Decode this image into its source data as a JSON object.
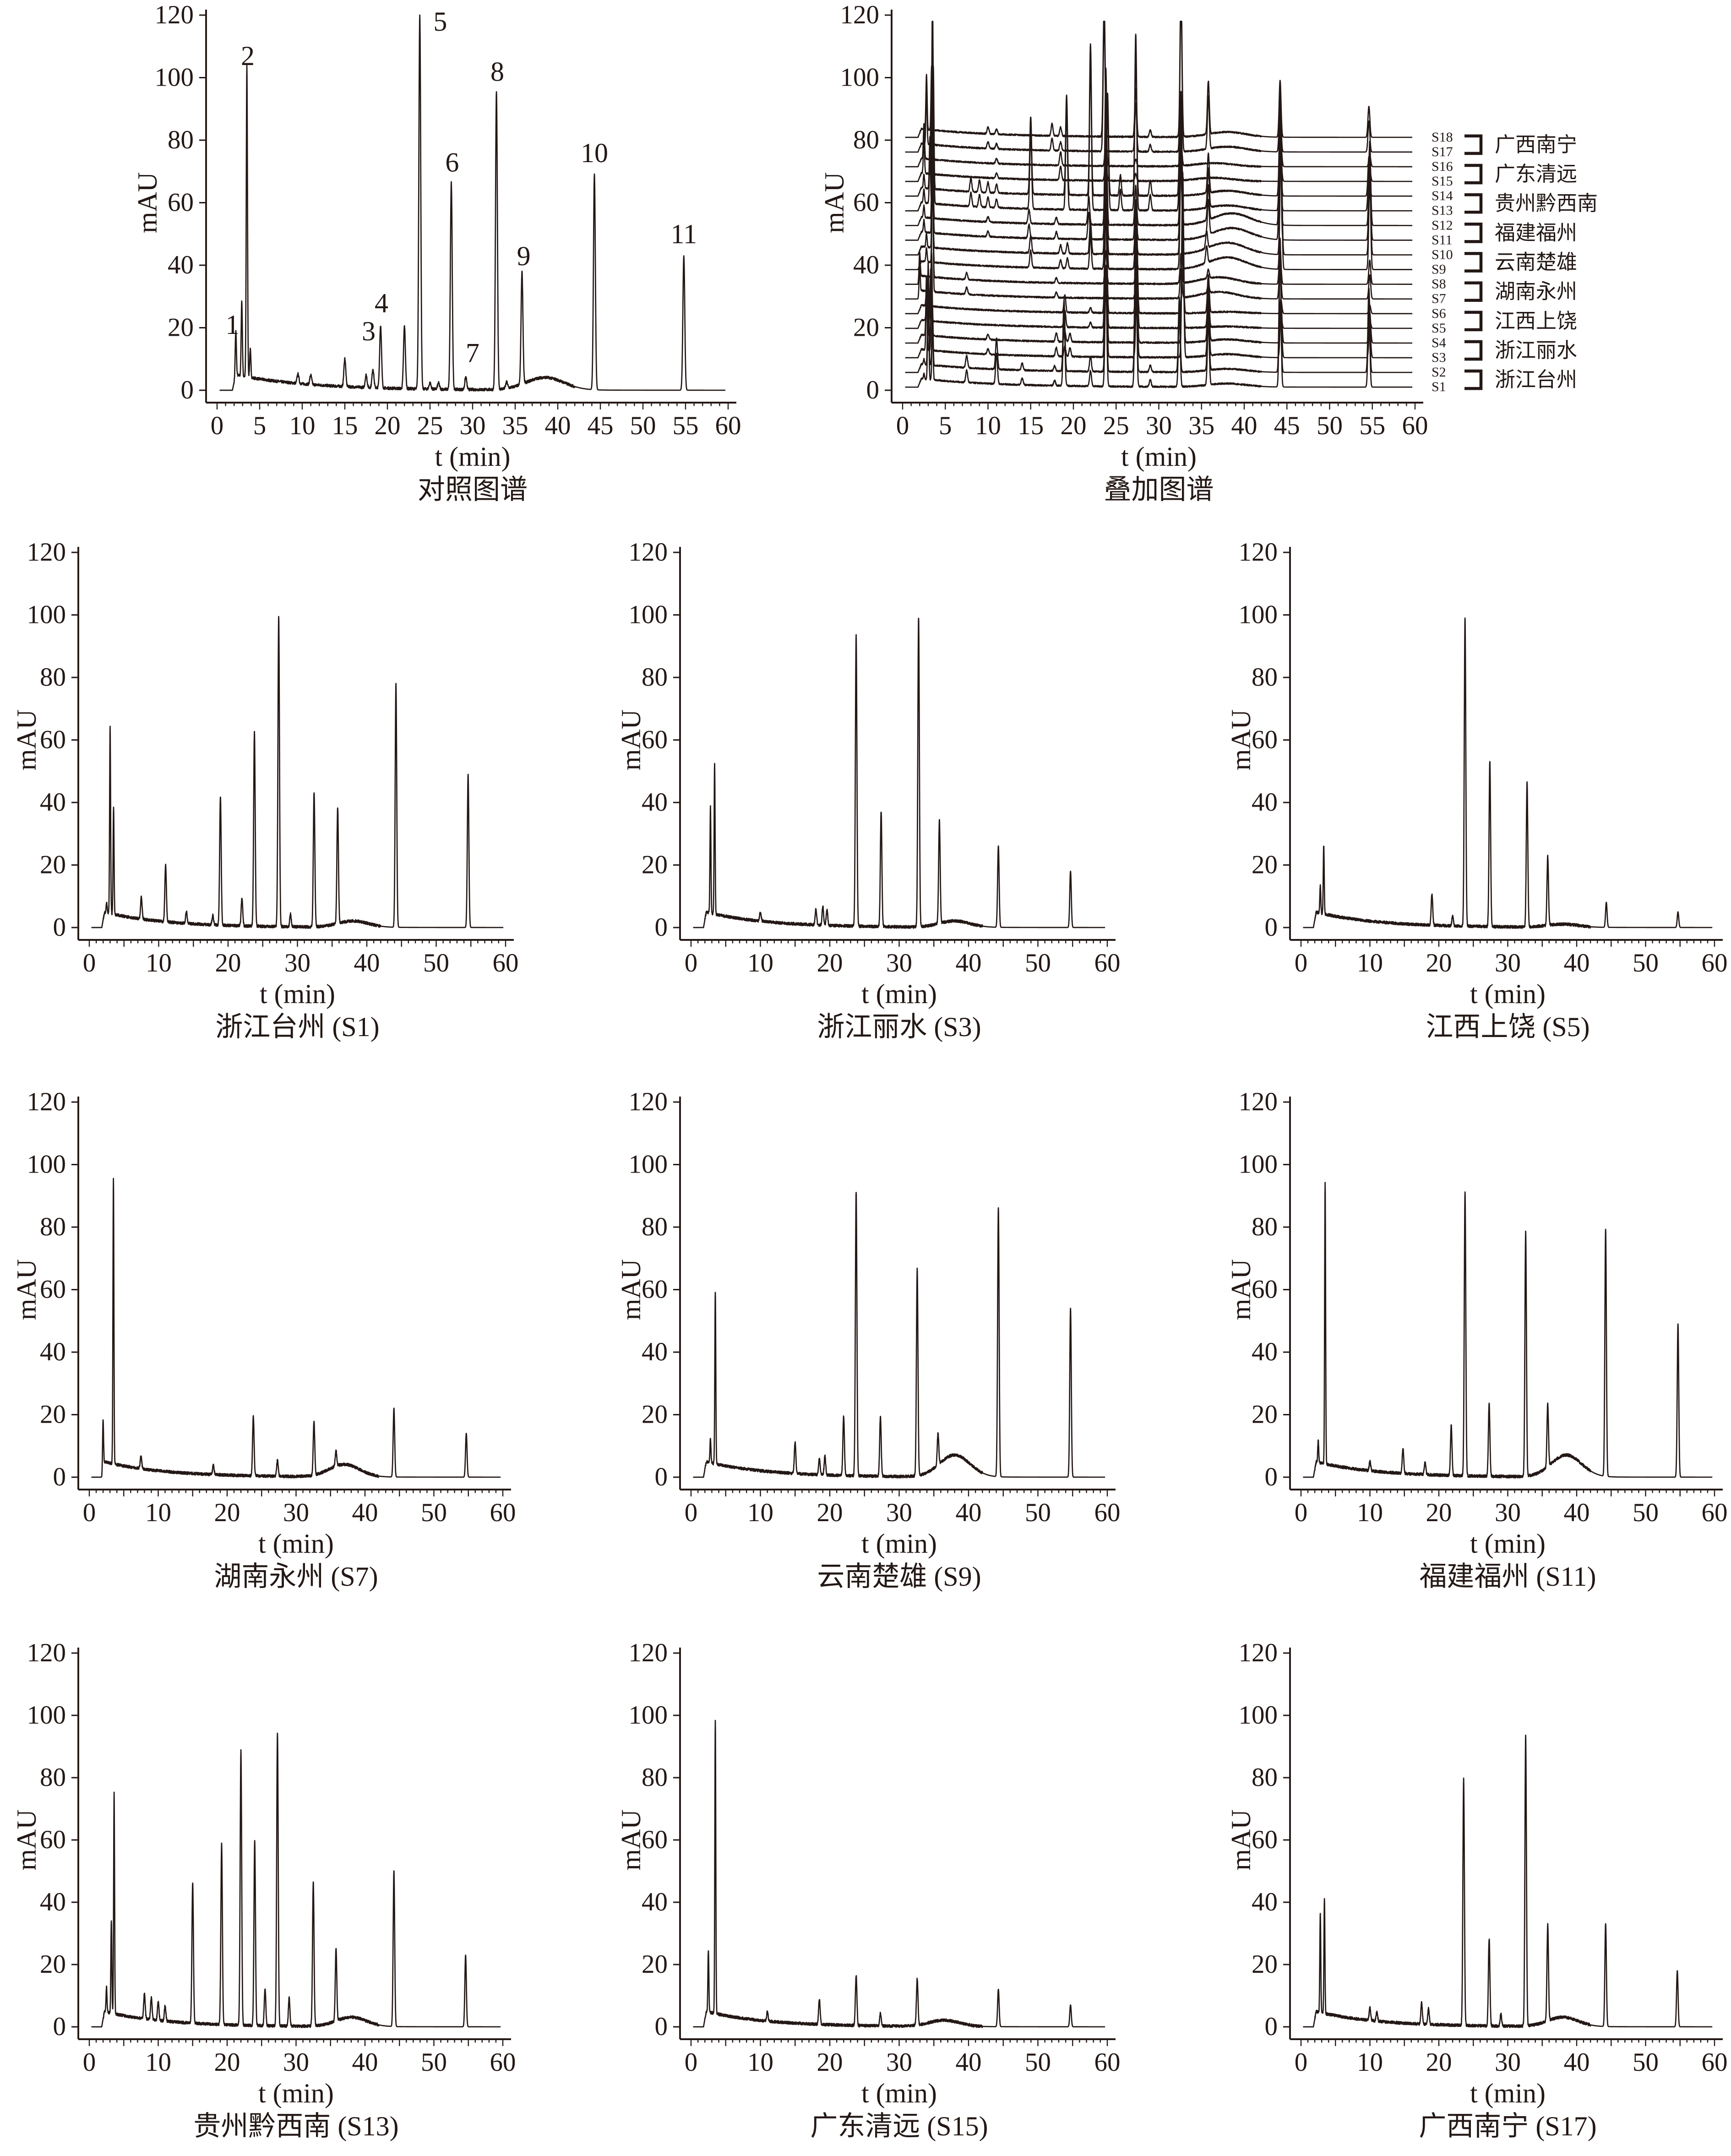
{
  "chart_data": [
    {
      "id": "reference",
      "type": "line",
      "title": "对照图谱",
      "xlabel": "t (min)",
      "ylabel": "mAU",
      "xlim": [
        0,
        60
      ],
      "ylim": [
        0,
        120
      ],
      "xticks": [
        0,
        5,
        10,
        15,
        20,
        25,
        30,
        35,
        40,
        45,
        50,
        55,
        60
      ],
      "yticks": [
        0,
        20,
        40,
        60,
        80,
        100,
        120
      ],
      "peaks": [
        [
          2.2,
          14
        ],
        [
          2.9,
          24
        ],
        [
          3.5,
          100
        ],
        [
          3.9,
          9
        ],
        [
          9.5,
          3
        ],
        [
          11,
          3
        ],
        [
          15,
          9
        ],
        [
          17.5,
          4
        ],
        [
          18.3,
          6
        ],
        [
          19.2,
          20
        ],
        [
          22,
          20
        ],
        [
          23.8,
          120
        ],
        [
          25,
          2
        ],
        [
          26,
          2
        ],
        [
          27.5,
          66
        ],
        [
          29.2,
          4
        ],
        [
          32.8,
          95
        ],
        [
          34,
          2
        ],
        [
          35.8,
          36
        ],
        [
          44.3,
          69
        ],
        [
          54.8,
          43
        ]
      ],
      "hump": [
        38.5,
        4
      ],
      "peak_labels": [
        {
          "label": "1",
          "t": 1.8,
          "y": 18
        },
        {
          "label": "2",
          "t": 3.6,
          "y": 104
        },
        {
          "label": "3",
          "t": 17.8,
          "y": 16
        },
        {
          "label": "4",
          "t": 19.3,
          "y": 25
        },
        {
          "label": "5",
          "t": 26.2,
          "y": 115
        },
        {
          "label": "6",
          "t": 27.6,
          "y": 70
        },
        {
          "label": "7",
          "t": 30.0,
          "y": 9
        },
        {
          "label": "8",
          "t": 32.9,
          "y": 99
        },
        {
          "label": "9",
          "t": 36.0,
          "y": 40
        },
        {
          "label": "10",
          "t": 44.3,
          "y": 73
        },
        {
          "label": "11",
          "t": 54.8,
          "y": 47
        }
      ]
    },
    {
      "id": "overlay",
      "type": "line",
      "title": "叠加图谱",
      "xlabel": "t (min)",
      "ylabel": "mAU",
      "xlim": [
        0,
        60
      ],
      "ylim": [
        0,
        120
      ],
      "xticks": [
        0,
        5,
        10,
        15,
        20,
        25,
        30,
        35,
        40,
        45,
        50,
        55,
        60
      ],
      "yticks": [
        0,
        20,
        40,
        60,
        80,
        100,
        120
      ],
      "traces": [
        "S1",
        "S2",
        "S3",
        "S4",
        "S5",
        "S6",
        "S7",
        "S8",
        "S9",
        "S10",
        "S11",
        "S12",
        "S13",
        "S14",
        "S15",
        "S16",
        "S17",
        "S18"
      ],
      "groups": [
        {
          "samples": [
            "S17",
            "S18"
          ],
          "region": "广西南宁",
          "profile": "S17"
        },
        {
          "samples": [
            "S15",
            "S16"
          ],
          "region": "广东清远",
          "profile": "S15"
        },
        {
          "samples": [
            "S13",
            "S14"
          ],
          "region": "贵州黔西南",
          "profile": "S13"
        },
        {
          "samples": [
            "S11",
            "S12"
          ],
          "region": "福建福州",
          "profile": "S11"
        },
        {
          "samples": [
            "S9",
            "S10"
          ],
          "region": "云南楚雄",
          "profile": "S9"
        },
        {
          "samples": [
            "S7",
            "S8"
          ],
          "region": "湖南永州",
          "profile": "S7"
        },
        {
          "samples": [
            "S5",
            "S6"
          ],
          "region": "江西上饶",
          "profile": "S5"
        },
        {
          "samples": [
            "S3",
            "S4"
          ],
          "region": "浙江丽水",
          "profile": "S3"
        },
        {
          "samples": [
            "S1",
            "S2"
          ],
          "region": "浙江台州",
          "profile": "S1"
        }
      ],
      "offset_step_mAU": 4.7
    },
    {
      "id": "S1",
      "type": "line",
      "title": "浙江台州 (S1)",
      "xlabel": "t (min)",
      "ylabel": "mAU",
      "xlim": [
        0,
        60
      ],
      "ylim": [
        0,
        120
      ],
      "xticks": [
        0,
        10,
        20,
        30,
        40,
        50,
        60
      ],
      "yticks": [
        0,
        20,
        40,
        60,
        80,
        100,
        120
      ],
      "peaks": [
        [
          2.5,
          3
        ],
        [
          3.0,
          60
        ],
        [
          3.5,
          34
        ],
        [
          7.5,
          7
        ],
        [
          11,
          18
        ],
        [
          14,
          4
        ],
        [
          17.8,
          3
        ],
        [
          18.9,
          41
        ],
        [
          22,
          9
        ],
        [
          23.8,
          62
        ],
        [
          27.3,
          99
        ],
        [
          29,
          4
        ],
        [
          32.4,
          43
        ],
        [
          35.8,
          37
        ],
        [
          44.2,
          78
        ],
        [
          54.6,
          49
        ]
      ],
      "hump": [
        38,
        2
      ]
    },
    {
      "id": "S3",
      "type": "line",
      "title": "浙江丽水 (S3)",
      "xlabel": "t (min)",
      "ylabel": "mAU",
      "xlim": [
        0,
        60
      ],
      "ylim": [
        0,
        120
      ],
      "xticks": [
        0,
        10,
        20,
        30,
        40,
        50,
        60
      ],
      "yticks": [
        0,
        20,
        40,
        60,
        80,
        100,
        120
      ],
      "peaks": [
        [
          2.8,
          34
        ],
        [
          3.4,
          48
        ],
        [
          10,
          3
        ],
        [
          18,
          5
        ],
        [
          19,
          6
        ],
        [
          19.6,
          5
        ],
        [
          23.8,
          93
        ],
        [
          27.4,
          37
        ],
        [
          32.8,
          99
        ],
        [
          35.8,
          33
        ],
        [
          44.3,
          26
        ],
        [
          54.7,
          18
        ]
      ],
      "hump": [
        38,
        2
      ]
    },
    {
      "id": "S5",
      "type": "line",
      "title": "江西上饶 (S5)",
      "xlabel": "t (min)",
      "ylabel": "mAU",
      "xlim": [
        0,
        60
      ],
      "ylim": [
        0,
        120
      ],
      "xticks": [
        0,
        10,
        20,
        30,
        40,
        50,
        60
      ],
      "yticks": [
        0,
        20,
        40,
        60,
        80,
        100,
        120
      ],
      "peaks": [
        [
          2.8,
          9
        ],
        [
          3.3,
          22
        ],
        [
          19,
          10
        ],
        [
          22,
          3
        ],
        [
          23.8,
          99
        ],
        [
          27.4,
          53
        ],
        [
          32.8,
          46
        ],
        [
          35.8,
          22
        ],
        [
          44.3,
          8
        ],
        [
          54.7,
          5
        ]
      ],
      "hump": [
        38,
        1
      ]
    },
    {
      "id": "S7",
      "type": "line",
      "title": "湖南永州 (S7)",
      "xlabel": "t (min)",
      "ylabel": "mAU",
      "xlim": [
        0,
        60
      ],
      "ylim": [
        0,
        120
      ],
      "xticks": [
        0,
        10,
        20,
        30,
        40,
        50,
        60
      ],
      "yticks": [
        0,
        20,
        40,
        60,
        80,
        100,
        120
      ],
      "peaks": [
        [
          2.0,
          16
        ],
        [
          3.5,
          91
        ],
        [
          7.5,
          4
        ],
        [
          18,
          3
        ],
        [
          23.8,
          19
        ],
        [
          27.3,
          5
        ],
        [
          32.6,
          17
        ],
        [
          35.8,
          5
        ],
        [
          44.2,
          22
        ],
        [
          54.7,
          14
        ]
      ],
      "hump": [
        37,
        4
      ]
    },
    {
      "id": "S9",
      "type": "line",
      "title": "云南楚雄 (S9)",
      "xlabel": "t (min)",
      "ylabel": "mAU",
      "xlim": [
        0,
        60
      ],
      "ylim": [
        0,
        120
      ],
      "xticks": [
        0,
        10,
        20,
        30,
        40,
        50,
        60
      ],
      "yticks": [
        0,
        20,
        40,
        60,
        80,
        100,
        120
      ],
      "peaks": [
        [
          2.8,
          8
        ],
        [
          3.5,
          55
        ],
        [
          15,
          10
        ],
        [
          18.5,
          5
        ],
        [
          19.3,
          6
        ],
        [
          22,
          19
        ],
        [
          23.8,
          91
        ],
        [
          27.3,
          19
        ],
        [
          32.6,
          66
        ],
        [
          35.6,
          10
        ],
        [
          44.3,
          86
        ],
        [
          54.7,
          54
        ]
      ],
      "hump": [
        38,
        7
      ]
    },
    {
      "id": "S11",
      "type": "line",
      "title": "福建福州 (S11)",
      "xlabel": "t (min)",
      "ylabel": "mAU",
      "xlim": [
        0,
        60
      ],
      "ylim": [
        0,
        120
      ],
      "xticks": [
        0,
        10,
        20,
        30,
        40,
        50,
        60
      ],
      "yticks": [
        0,
        20,
        40,
        60,
        80,
        100,
        120
      ],
      "peaks": [
        [
          2.5,
          7
        ],
        [
          3.5,
          90
        ],
        [
          10,
          3
        ],
        [
          14.8,
          8
        ],
        [
          18,
          4
        ],
        [
          21.8,
          16
        ],
        [
          23.8,
          91
        ],
        [
          27.3,
          23
        ],
        [
          32.6,
          78
        ],
        [
          35.8,
          20
        ],
        [
          44.2,
          79
        ],
        [
          54.7,
          49
        ]
      ],
      "hump": [
        38.5,
        7
      ]
    },
    {
      "id": "S13",
      "type": "line",
      "title": "贵州黔西南 (S13)",
      "xlabel": "t (min)",
      "ylabel": "mAU",
      "xlim": [
        0,
        60
      ],
      "ylim": [
        0,
        120
      ],
      "xticks": [
        0,
        10,
        20,
        30,
        40,
        50,
        60
      ],
      "yticks": [
        0,
        20,
        40,
        60,
        80,
        100,
        120
      ],
      "peaks": [
        [
          2.5,
          8
        ],
        [
          3.2,
          30
        ],
        [
          3.6,
          71
        ],
        [
          8,
          8
        ],
        [
          9,
          7
        ],
        [
          10,
          6
        ],
        [
          11,
          5
        ],
        [
          15,
          45
        ],
        [
          19.2,
          58
        ],
        [
          22,
          88
        ],
        [
          24,
          59
        ],
        [
          25.5,
          12
        ],
        [
          27.3,
          94
        ],
        [
          29,
          9
        ],
        [
          32.5,
          46
        ],
        [
          35.8,
          23
        ],
        [
          44.2,
          50
        ],
        [
          54.6,
          23
        ]
      ],
      "hump": [
        38,
        3
      ]
    },
    {
      "id": "S15",
      "type": "line",
      "title": "广东清远 (S15)",
      "xlabel": "t (min)",
      "ylabel": "mAU",
      "xlim": [
        0,
        60
      ],
      "ylim": [
        0,
        120
      ],
      "xticks": [
        0,
        10,
        20,
        30,
        40,
        50,
        60
      ],
      "yticks": [
        0,
        20,
        40,
        60,
        80,
        100,
        120
      ],
      "peaks": [
        [
          2.5,
          20
        ],
        [
          3.5,
          94
        ],
        [
          11,
          3
        ],
        [
          18.5,
          8
        ],
        [
          23.8,
          16
        ],
        [
          27.3,
          4
        ],
        [
          32.6,
          15
        ],
        [
          44.3,
          12
        ],
        [
          54.7,
          7
        ]
      ],
      "hump": [
        36.5,
        2
      ]
    },
    {
      "id": "S17",
      "type": "line",
      "title": "广西南宁 (S17)",
      "xlabel": "t (min)",
      "ylabel": "mAU",
      "xlim": [
        0,
        60
      ],
      "ylim": [
        0,
        120
      ],
      "xticks": [
        0,
        10,
        20,
        30,
        40,
        50,
        60
      ],
      "yticks": [
        0,
        20,
        40,
        60,
        80,
        100,
        120
      ],
      "peaks": [
        [
          2.8,
          32
        ],
        [
          3.4,
          37
        ],
        [
          10,
          4
        ],
        [
          11,
          3
        ],
        [
          17.5,
          7
        ],
        [
          18.5,
          5
        ],
        [
          23.6,
          79
        ],
        [
          27.3,
          28
        ],
        [
          29,
          4
        ],
        [
          32.6,
          93
        ],
        [
          35.8,
          31
        ],
        [
          44.2,
          33
        ],
        [
          54.6,
          18
        ]
      ],
      "hump": [
        38,
        3
      ]
    }
  ]
}
